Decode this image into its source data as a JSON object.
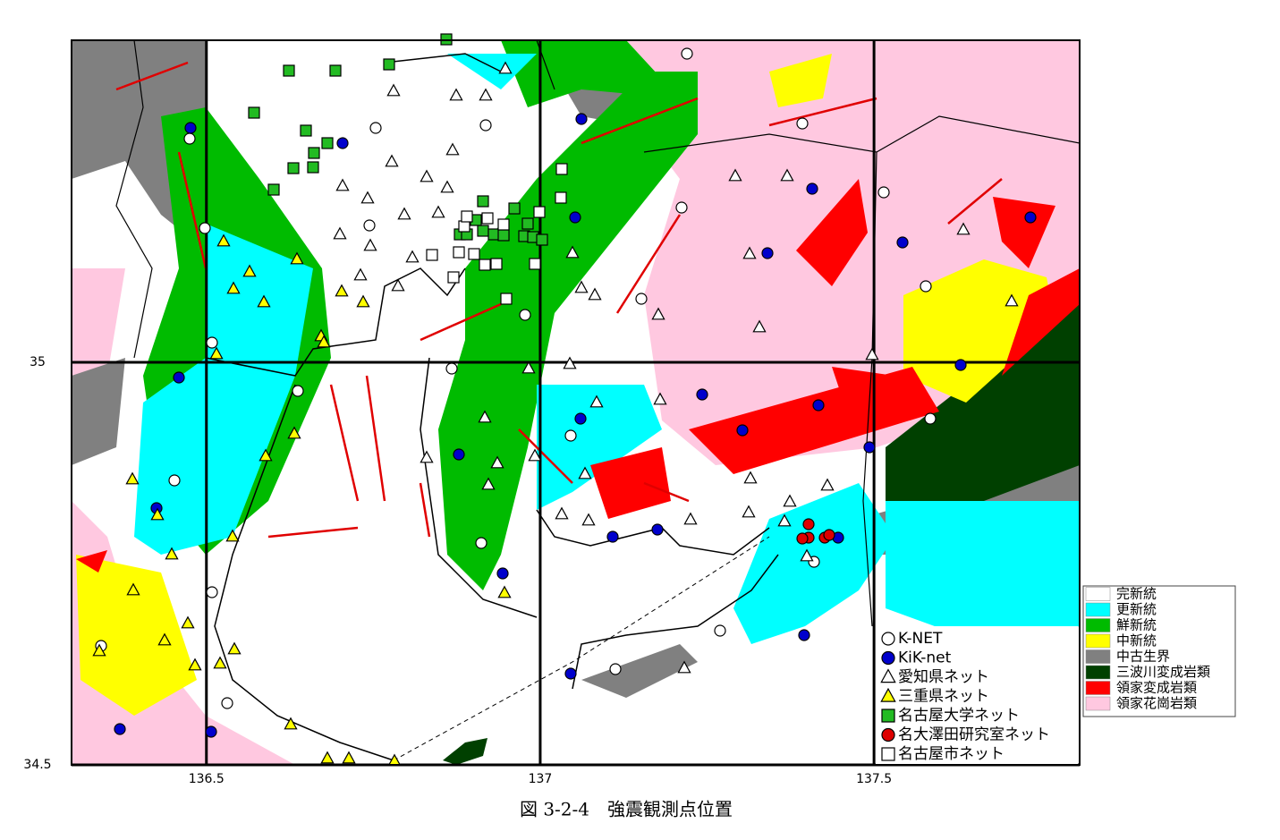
{
  "map": {
    "xlim": [
      136.298,
      137.808
    ],
    "ylim": [
      34.5,
      35.4
    ],
    "xticks": [
      136.5,
      137,
      137.5
    ],
    "yticks": [
      34.5,
      35
    ],
    "grid": true,
    "caption": "図 3-2-4　強震観測点位置",
    "legend": {
      "geology": [
        {
          "name": "完新統",
          "color": "#ffffff"
        },
        {
          "name": "更新統",
          "color": "#00ffff"
        },
        {
          "name": "鮮新統",
          "color": "#00bb00"
        },
        {
          "name": "中新統",
          "color": "#ffff00"
        },
        {
          "name": "中古生界",
          "color": "#808080"
        },
        {
          "name": "三波川変成岩類",
          "color": "#004000"
        },
        {
          "name": "領家変成岩類",
          "color": "#ff0000"
        },
        {
          "name": "領家花崗岩類",
          "color": "#ffc8e0"
        }
      ],
      "stations": [
        {
          "name": "K-NET",
          "symbol": "circle",
          "color": "#ffffff"
        },
        {
          "name": "KiK-net",
          "symbol": "circle",
          "color": "#0000cc"
        },
        {
          "name": "愛知県ネット",
          "symbol": "triangle",
          "color": "#ffffff"
        },
        {
          "name": "三重県ネット",
          "symbol": "triangle",
          "color": "#ffff00"
        },
        {
          "name": "名古屋大学ネット",
          "symbol": "square",
          "color": "#22bb22"
        },
        {
          "name": "名大澤田研究室ネット",
          "symbol": "circle",
          "color": "#dd0000"
        },
        {
          "name": "名古屋市ネット",
          "symbol": "square",
          "color": "#ffffff"
        }
      ]
    }
  }
}
